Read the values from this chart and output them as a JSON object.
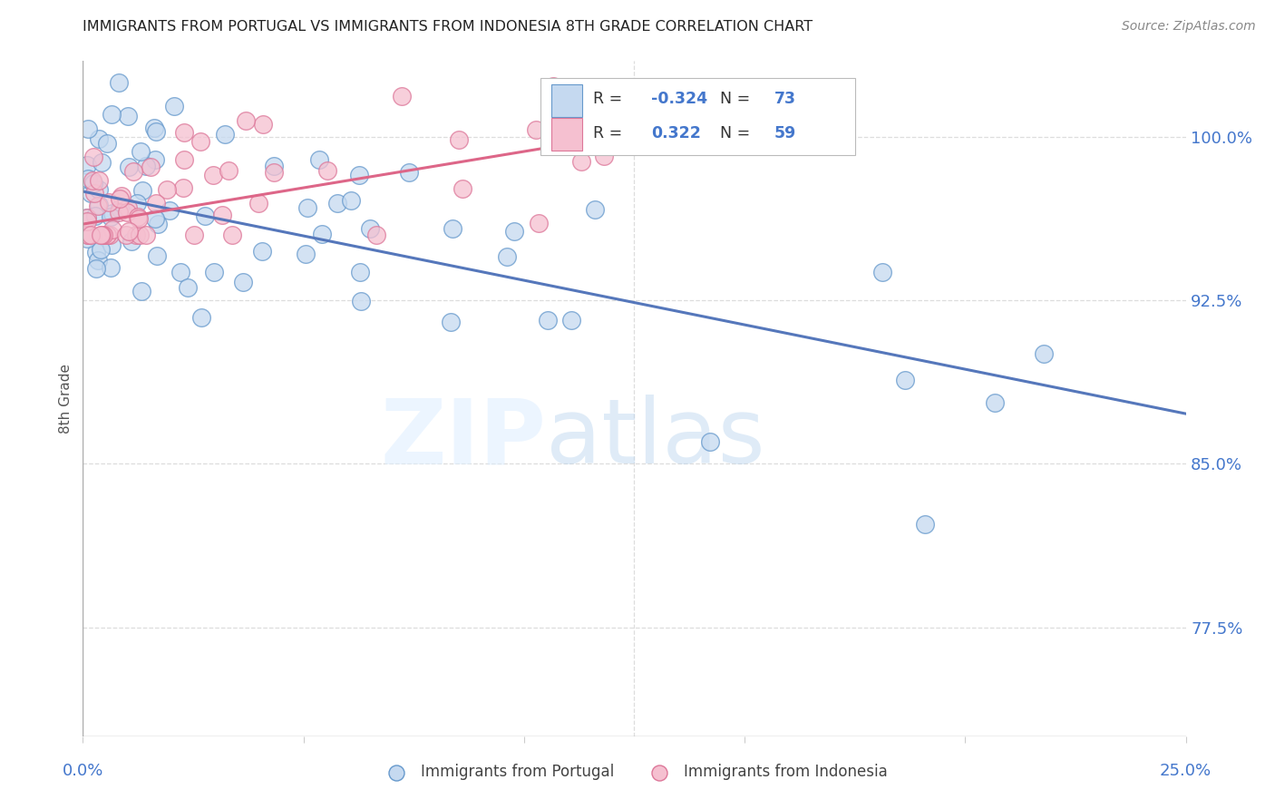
{
  "title": "IMMIGRANTS FROM PORTUGAL VS IMMIGRANTS FROM INDONESIA 8TH GRADE CORRELATION CHART",
  "source": "Source: ZipAtlas.com",
  "ylabel": "8th Grade",
  "ytick_labels": [
    "100.0%",
    "92.5%",
    "85.0%",
    "77.5%"
  ],
  "ytick_values": [
    1.0,
    0.925,
    0.85,
    0.775
  ],
  "xmin": 0.0,
  "xmax": 0.25,
  "ymin": 0.725,
  "ymax": 1.035,
  "legend_r_portugal": "-0.324",
  "legend_n_portugal": "73",
  "legend_r_indonesia": "0.322",
  "legend_n_indonesia": "59",
  "color_portugal_fill": "#c5d9f0",
  "color_portugal_edge": "#6699cc",
  "color_indonesia_fill": "#f5c0d0",
  "color_indonesia_edge": "#dd7799",
  "color_portugal_line": "#5577bb",
  "color_indonesia_line": "#dd6688",
  "color_label": "#4477cc",
  "watermark_zip": "ZIP",
  "watermark_atlas": "atlas",
  "portugal_line_x0": 0.0,
  "portugal_line_x1": 0.25,
  "portugal_line_y0": 0.975,
  "portugal_line_y1": 0.873,
  "indonesia_line_x0": 0.0,
  "indonesia_line_x1": 0.135,
  "indonesia_line_y0": 0.96,
  "indonesia_line_y1": 1.005
}
